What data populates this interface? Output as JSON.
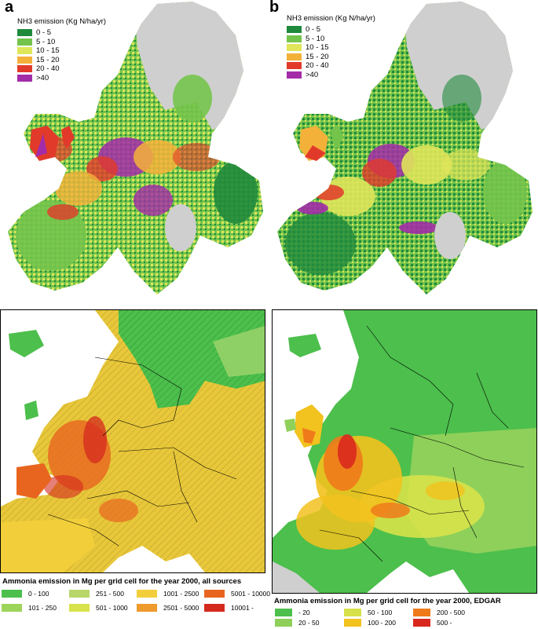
{
  "panel_a": {
    "letter": "a",
    "legend_title": "NH3 emission  (Kg N/ha/yr)",
    "legend": [
      {
        "label": "0 - 5",
        "color": "#1f8a3c"
      },
      {
        "label": "5 - 10",
        "color": "#74c44c"
      },
      {
        "label": "10 - 15",
        "color": "#dfe65a"
      },
      {
        "label": "15 - 20",
        "color": "#f4b13a"
      },
      {
        "label": "20 - 40",
        "color": "#e23a2a"
      },
      {
        "label": ">40",
        "color": "#a32ca8"
      }
    ]
  },
  "panel_b": {
    "letter": "b",
    "legend_title": "NH3 emission  (Kg N/ha/yr)",
    "legend": [
      {
        "label": "0 - 5",
        "color": "#1f8a3c"
      },
      {
        "label": "5 - 10",
        "color": "#74c44c"
      },
      {
        "label": "10 - 15",
        "color": "#dfe65a"
      },
      {
        "label": "15 - 20",
        "color": "#f4b13a"
      },
      {
        "label": "20 - 40",
        "color": "#e23a2a"
      },
      {
        "label": ">40",
        "color": "#a32ca8"
      }
    ]
  },
  "panel_c": {
    "caption": "Ammonia emission in Mg per grid cell for the year 2000, all sources",
    "legend": [
      {
        "label": "0 - 100",
        "color": "#4cbf4c"
      },
      {
        "label": "101 - 250",
        "color": "#9dd45a"
      },
      {
        "label": "251 - 500",
        "color": "#b8d66a"
      },
      {
        "label": "501 - 1000",
        "color": "#d8e24a"
      },
      {
        "label": "1001 - 2500",
        "color": "#f2cf3a"
      },
      {
        "label": "2501 - 5000",
        "color": "#ee9a2c"
      },
      {
        "label": "5001 - 10000",
        "color": "#e8651f"
      },
      {
        "label": "10001 -",
        "color": "#d42a1e"
      }
    ]
  },
  "panel_d": {
    "caption": "Ammonia emission in Mg per grid cell for the year 2000, EDGAR",
    "legend": [
      {
        "label": "- 20",
        "color": "#4cbf4c"
      },
      {
        "label": "20 - 50",
        "color": "#8ed05a"
      },
      {
        "label": "50 - 100",
        "color": "#d7e24a"
      },
      {
        "label": "100 - 200",
        "color": "#f2c21e"
      },
      {
        "label": "200 - 500",
        "color": "#ef7a1a"
      },
      {
        "label": "500 -",
        "color": "#d8281e"
      }
    ]
  },
  "colors": {
    "land_grey": "#cfcfcf",
    "sea_white": "#ffffff",
    "border_black": "#000000"
  }
}
